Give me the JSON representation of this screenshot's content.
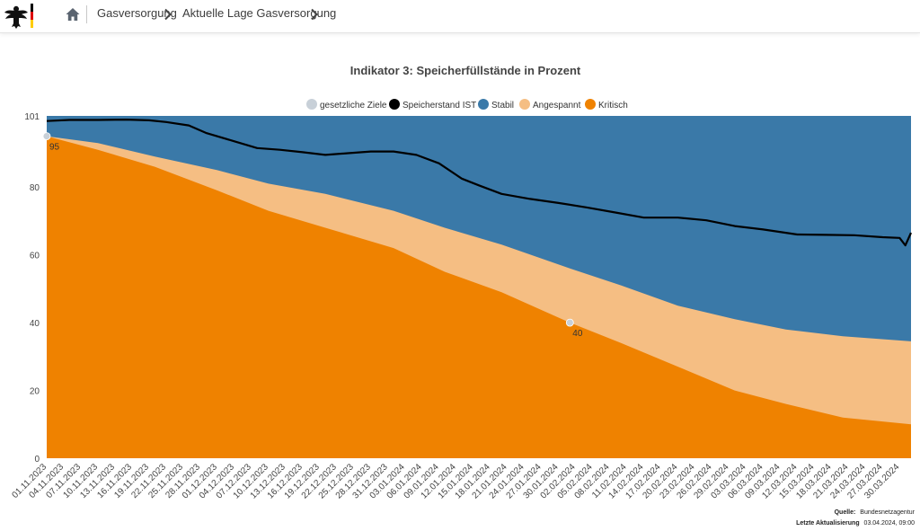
{
  "header": {
    "logo_icon": "federal-eagle-icon",
    "home_icon": "home-icon",
    "breadcrumbs": [
      "Gasversorgung",
      "Aktuelle Lage Gasversorgung"
    ]
  },
  "colors": {
    "stabil": "#3a79a8",
    "angespannt": "#f5be83",
    "kritisch": "#ef8200",
    "ist": "#000000",
    "ziele": "#c8d0d8"
  },
  "chart_data": {
    "type": "area",
    "title": "Indikator 3: Speicherfüllstände in Prozent",
    "ylim": [
      0,
      101
    ],
    "yticks": [
      0,
      20,
      40,
      60,
      80,
      101
    ],
    "grid": false,
    "legend_position": "top-center",
    "legend": [
      "gesetzliche Ziele",
      "Speicherstand IST",
      "Stabil",
      "Angespannt",
      "Kritisch"
    ],
    "x_start": "01.11.2023",
    "x_end": "01.04.2024",
    "xtick_labels": [
      "01.11.2023",
      "04.11.2023",
      "07.11.2023",
      "10.11.2023",
      "13.11.2023",
      "16.11.2023",
      "19.11.2023",
      "22.11.2023",
      "25.11.2023",
      "28.11.2023",
      "01.12.2023",
      "04.12.2023",
      "07.12.2023",
      "10.12.2023",
      "13.12.2023",
      "16.12.2023",
      "19.12.2023",
      "22.12.2023",
      "25.12.2023",
      "28.12.2023",
      "31.12.2023",
      "03.01.2024",
      "06.01.2024",
      "09.01.2024",
      "12.01.2024",
      "15.01.2024",
      "18.01.2024",
      "21.01.2024",
      "24.01.2024",
      "27.01.2024",
      "30.01.2024",
      "02.02.2024",
      "05.02.2024",
      "08.02.2024",
      "11.02.2024",
      "14.02.2024",
      "17.02.2024",
      "20.02.2024",
      "23.02.2024",
      "26.02.2024",
      "29.02.2024",
      "03.03.2024",
      "06.03.2024",
      "09.03.2024",
      "12.03.2024",
      "15.03.2024",
      "18.03.2024",
      "21.03.2024",
      "24.03.2024",
      "27.03.2024",
      "30.03.2024"
    ],
    "band_dates": [
      "01.11.2023",
      "10.11.2023",
      "20.11.2023",
      "01.12.2023",
      "10.12.2023",
      "20.12.2023",
      "01.01.2024",
      "10.01.2024",
      "20.01.2024",
      "01.02.2024",
      "10.02.2024",
      "20.02.2024",
      "01.03.2024",
      "10.03.2024",
      "20.03.2024",
      "01.04.2024"
    ],
    "series": [
      {
        "name": "Stabil",
        "values": [
          101,
          101,
          101,
          101,
          101,
          101,
          101,
          101,
          101,
          101,
          101,
          101,
          101,
          101,
          101,
          101
        ]
      },
      {
        "name": "Angespannt",
        "values": [
          95,
          93,
          89,
          85,
          81,
          78,
          73,
          68,
          63,
          56,
          51,
          45,
          41,
          38,
          36,
          34.5
        ]
      },
      {
        "name": "Kritisch",
        "values": [
          95,
          91,
          86,
          79,
          73,
          68,
          62,
          55,
          49,
          40,
          34,
          27,
          20,
          16,
          12,
          10
        ]
      }
    ],
    "ist": {
      "name": "Speicherstand IST",
      "dates": [
        "01.11.2023",
        "05.11.2023",
        "10.11.2023",
        "15.11.2023",
        "19.11.2023",
        "22.11.2023",
        "26.11.2023",
        "29.11.2023",
        "04.12.2023",
        "08.12.2023",
        "12.12.2023",
        "16.12.2023",
        "20.12.2023",
        "24.12.2023",
        "28.12.2023",
        "01.01.2024",
        "05.01.2024",
        "09.01.2024",
        "13.01.2024",
        "16.01.2024",
        "20.01.2024",
        "25.01.2024",
        "30.01.2024",
        "04.02.2024",
        "09.02.2024",
        "14.02.2024",
        "20.02.2024",
        "25.02.2024",
        "01.03.2024",
        "06.03.2024",
        "12.03.2024",
        "17.03.2024",
        "22.03.2024",
        "27.03.2024",
        "30.03.2024",
        "31.03.2024",
        "01.04.2024"
      ],
      "values": [
        99.5,
        99.8,
        99.8,
        99.9,
        99.7,
        99.2,
        98.2,
        96,
        93.5,
        91.5,
        91,
        90.3,
        89.5,
        90,
        90.5,
        90.5,
        89.5,
        87,
        82.5,
        80.5,
        78,
        76.5,
        75.3,
        74,
        72.5,
        71,
        71,
        70.2,
        68.5,
        67.5,
        66,
        65.9,
        65.8,
        65.2,
        65,
        62.8,
        66.5
      ]
    },
    "targets": [
      {
        "date": "01.11.2023",
        "value": 95,
        "label": "95"
      },
      {
        "date": "01.02.2024",
        "value": 40,
        "label": "40"
      }
    ],
    "source_label": "Quelle:",
    "source_value": "Bundesnetzagentur",
    "updated_label": "Letzte Aktualisierung",
    "updated_value": "03.04.2024, 09:00"
  }
}
